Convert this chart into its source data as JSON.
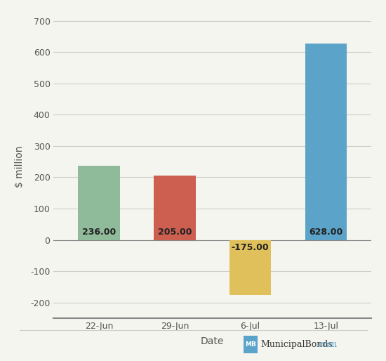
{
  "categories": [
    "22-Jun",
    "29-Jun",
    "6-Jul",
    "13-Jul"
  ],
  "values": [
    236.0,
    205.0,
    -175.0,
    628.0
  ],
  "bar_colors": [
    "#8fbb9a",
    "#cc5f4f",
    "#dfc05b",
    "#5ba3c9"
  ],
  "label_color": "#222222",
  "xlabel": "Date",
  "ylabel": "$ million",
  "ylim": [
    -250,
    720
  ],
  "yticks": [
    -200,
    -100,
    0,
    100,
    200,
    300,
    400,
    500,
    600,
    700
  ],
  "background_color": "#f5f5ef",
  "grid_color": "#cccccc",
  "watermark_main_color": "#333333",
  "watermark_com_color": "#5ba3c9",
  "watermark_box_color": "#5ba3c9"
}
